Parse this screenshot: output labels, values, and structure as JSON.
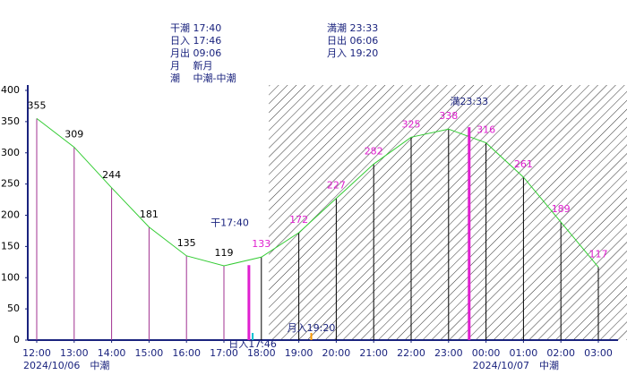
{
  "chart_data": {
    "type": "tide",
    "info_left": [
      "干潮 17:40",
      "日入 17:46",
      "月出 09:06",
      "月　 新月",
      "潮　 中潮-中潮"
    ],
    "info_right": [
      "満潮 23:33",
      "日出 06:06",
      "月入 19:20"
    ],
    "x": [
      12,
      13,
      14,
      15,
      16,
      17,
      18,
      19,
      20,
      21,
      22,
      23,
      24,
      25,
      26,
      27
    ],
    "series": [
      {
        "color": "#33cc33",
        "values": [
          355,
          309,
          244,
          181,
          135,
          119,
          133,
          172,
          227,
          282,
          325,
          338,
          316,
          261,
          189,
          117
        ]
      }
    ],
    "xlim": [
      12,
      27
    ],
    "xticks": [
      {
        "value": 12,
        "label": "12:00"
      },
      {
        "value": 13,
        "label": "13:00"
      },
      {
        "value": 14,
        "label": "14:00"
      },
      {
        "value": 15,
        "label": "15:00"
      },
      {
        "value": 16,
        "label": "16:00"
      },
      {
        "value": 17,
        "label": "17:00"
      },
      {
        "value": 18,
        "label": "18:00"
      },
      {
        "value": 19,
        "label": "19:00"
      },
      {
        "value": 20,
        "label": "20:00"
      },
      {
        "value": 21,
        "label": "21:00"
      },
      {
        "value": 22,
        "label": "22:00"
      },
      {
        "value": 23,
        "label": "23:00"
      },
      {
        "value": 24,
        "label": "00:00"
      },
      {
        "value": 25,
        "label": "01:00"
      },
      {
        "value": 26,
        "label": "02:00"
      },
      {
        "value": 27,
        "label": "03:00"
      }
    ],
    "ylim": [
      0,
      400
    ],
    "yticks": [
      0,
      50,
      100,
      150,
      200,
      250,
      300,
      350,
      400
    ],
    "night_from": 18,
    "hatch_from": 18.2,
    "day_color": "#a03090",
    "night_color": "#000000",
    "day_label_color": "#000000",
    "night_label_color": "#e020d0",
    "extremes": [
      {
        "label": "干17:40",
        "x": 17.667,
        "value": 120,
        "color": "#e020d0"
      },
      {
        "label": "満23:33",
        "x": 23.55,
        "value": 341,
        "color": "#e020d0"
      }
    ],
    "events": [
      {
        "label": "日入17:46",
        "x": 17.767,
        "color": "#00c0d0",
        "side": "below"
      },
      {
        "label": "月入19:20",
        "x": 19.333,
        "color": "#ff9900",
        "side": "above"
      }
    ],
    "dates": [
      {
        "label": "2024/10/06　中潮",
        "x": 12
      },
      {
        "label": "2024/10/07　中潮",
        "x": 24
      }
    ]
  }
}
